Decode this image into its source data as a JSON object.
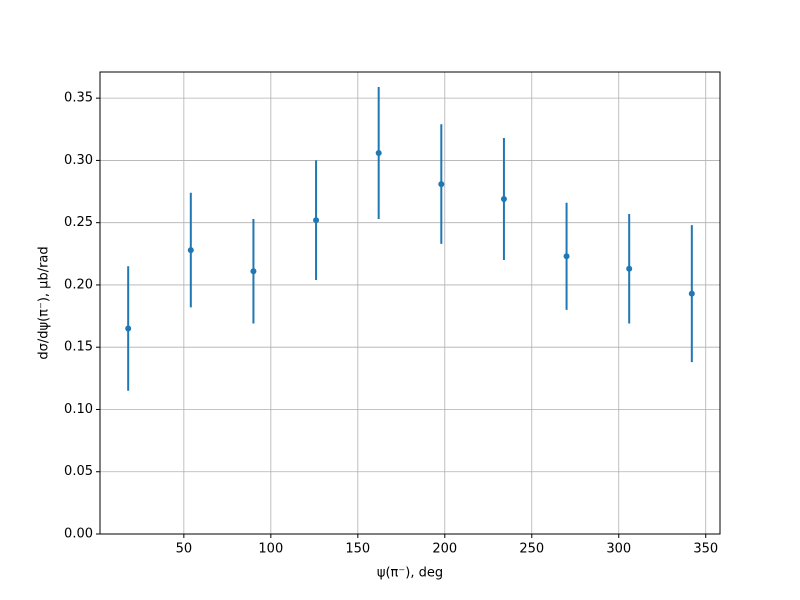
{
  "chart_data": {
    "type": "errorbar",
    "xlabel": "ψ(π⁻), deg",
    "ylabel": "dσ/dψ(π⁻), μb/rad",
    "x": [
      18,
      54,
      90,
      126,
      162,
      198,
      234,
      270,
      306,
      342
    ],
    "series": [
      {
        "color": "#1f77b4",
        "values": [
          0.165,
          0.228,
          0.211,
          0.252,
          0.306,
          0.281,
          0.269,
          0.223,
          0.213,
          0.193
        ],
        "errors": [
          0.05,
          0.046,
          0.042,
          0.048,
          0.053,
          0.048,
          0.049,
          0.043,
          0.044,
          0.055
        ]
      }
    ],
    "xlim": [
      1.8,
      358.2
    ],
    "ylim": [
      0,
      0.371
    ],
    "xticks": [
      50,
      100,
      150,
      200,
      250,
      300,
      350
    ],
    "yticks": [
      {
        "value": 0,
        "label": "0.00"
      },
      {
        "value": 0.05,
        "label": "0.05"
      },
      {
        "value": 0.1,
        "label": "0.10"
      },
      {
        "value": 0.15,
        "label": "0.15"
      },
      {
        "value": 0.2,
        "label": "0.20"
      },
      {
        "value": 0.25,
        "label": "0.25"
      },
      {
        "value": 0.3,
        "label": "0.30"
      },
      {
        "value": 0.35,
        "label": "0.35"
      }
    ],
    "grid": true
  }
}
